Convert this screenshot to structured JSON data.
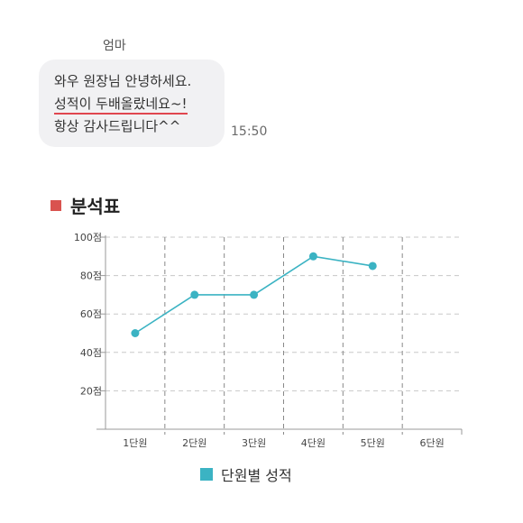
{
  "message": {
    "sender": "엄마",
    "lines": [
      "와우 원장님 안녕하세요.",
      "성적이 두배올랐네요~!",
      "항상 감사드립니다^^"
    ],
    "time": "15:50"
  },
  "section": {
    "title": "분석표",
    "accent_color": "#d9534f"
  },
  "chart_data": {
    "type": "line",
    "categories": [
      "1단원",
      "2단원",
      "3단원",
      "4단원",
      "5단원",
      "6단원"
    ],
    "series": [
      {
        "name": "단원별 성적",
        "color": "#3bb3c3",
        "values": [
          50,
          70,
          70,
          90,
          85,
          null
        ]
      }
    ],
    "y_ticks": [
      "20점",
      "40점",
      "60점",
      "80점",
      "100점"
    ],
    "ylim": [
      0,
      100
    ],
    "grid": true,
    "legend_position": "bottom-center"
  }
}
